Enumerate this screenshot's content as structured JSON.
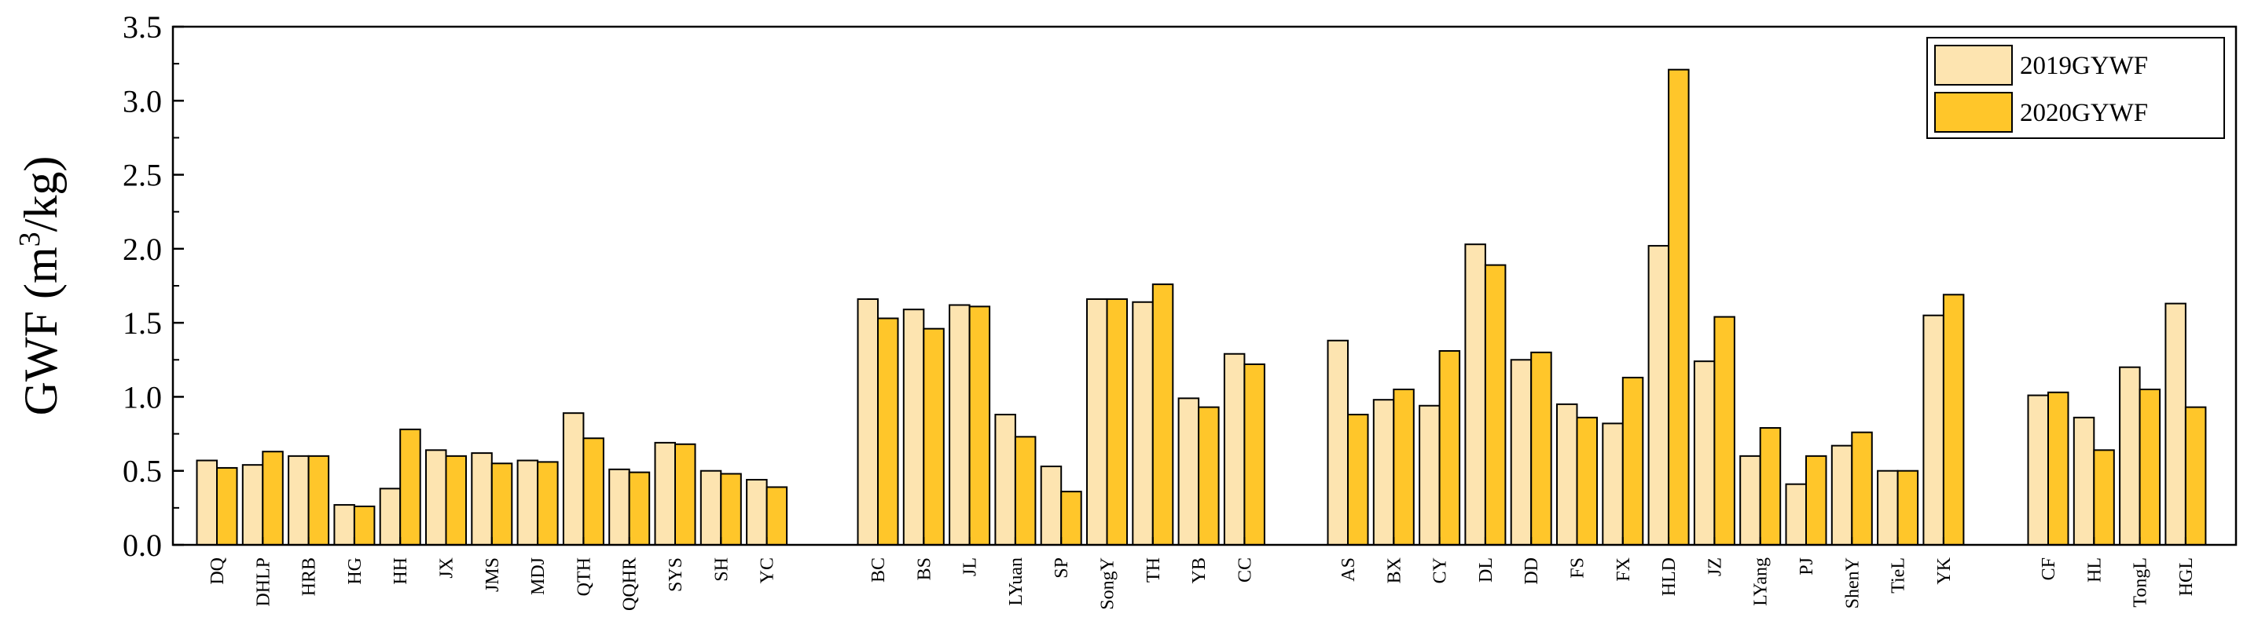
{
  "chart_data": {
    "type": "bar",
    "ylabel": "GWF (m3/kg)",
    "ylabel_parts": {
      "main": "GWF (m",
      "sup": "3",
      "tail": "/kg)"
    },
    "ylim": [
      0,
      3.5
    ],
    "yticks": [
      "0.0",
      "0.5",
      "1.0",
      "1.5",
      "2.0",
      "2.5",
      "3.0",
      "3.5"
    ],
    "legend_position": "top-right",
    "groups": [
      {
        "categories": [
          "DQ",
          "DHLP",
          "HRB",
          "HG",
          "HH",
          "JX",
          "JMS",
          "MDJ",
          "QTH",
          "QQHR",
          "SYS",
          "SH",
          "YC"
        ]
      },
      {
        "categories": [
          "BC",
          "BS",
          "JL",
          "LYuan",
          "SP",
          "SongY",
          "TH",
          "YB",
          "CC"
        ]
      },
      {
        "categories": [
          "AS",
          "BX",
          "CY",
          "DL",
          "DD",
          "FS",
          "FX",
          "HLD",
          "JZ",
          "LYang",
          "PJ",
          "ShenY",
          "TieL",
          "YK"
        ]
      },
      {
        "categories": [
          "CF",
          "HL",
          "TongL",
          "HGL"
        ]
      }
    ],
    "series": [
      {
        "name": "2019GYWF",
        "color": "#fde4b0",
        "values": [
          0.57,
          0.54,
          0.6,
          0.27,
          0.38,
          0.64,
          0.62,
          0.57,
          0.89,
          0.51,
          0.69,
          0.5,
          0.44,
          1.66,
          1.59,
          1.62,
          0.88,
          0.53,
          1.66,
          1.64,
          0.99,
          1.29,
          1.38,
          0.98,
          0.94,
          2.03,
          1.25,
          0.95,
          0.82,
          2.02,
          1.24,
          0.6,
          0.41,
          0.67,
          0.5,
          1.55,
          1.01,
          0.86,
          1.2,
          1.63
        ]
      },
      {
        "name": "2020GYWF",
        "color": "#ffc62a",
        "values": [
          0.52,
          0.63,
          0.6,
          0.26,
          0.78,
          0.6,
          0.55,
          0.56,
          0.72,
          0.49,
          0.68,
          0.48,
          0.39,
          1.53,
          1.46,
          1.61,
          0.73,
          0.36,
          1.66,
          1.76,
          0.93,
          1.22,
          0.88,
          1.05,
          1.31,
          1.89,
          1.3,
          0.86,
          1.13,
          3.21,
          1.54,
          0.79,
          0.6,
          0.76,
          0.5,
          1.69,
          1.03,
          0.64,
          1.05,
          0.93
        ]
      }
    ]
  }
}
